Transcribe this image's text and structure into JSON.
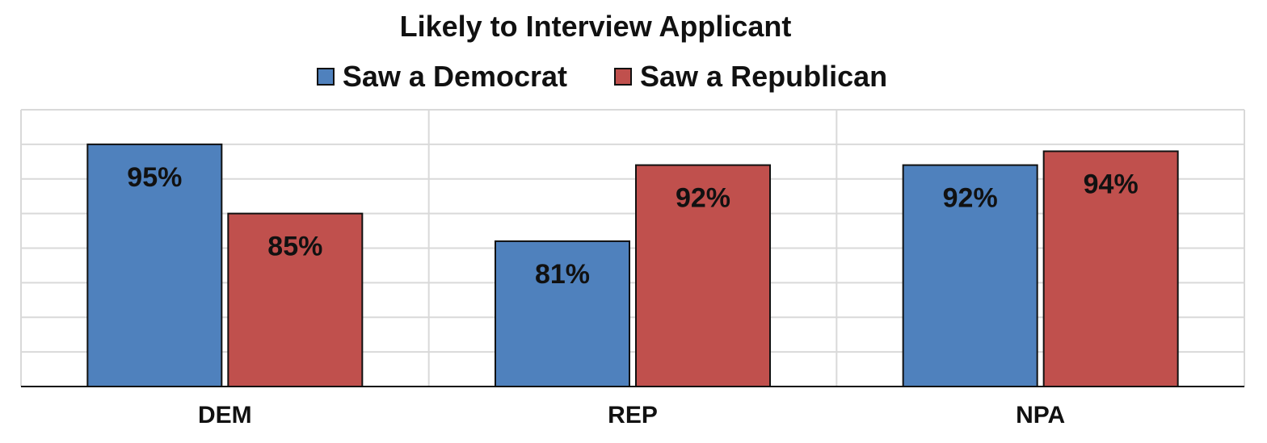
{
  "chart_data": {
    "type": "bar",
    "title": "Likely to Interview Applicant",
    "categories": [
      "DEM",
      "REP",
      "NPA"
    ],
    "series": [
      {
        "name": "Saw a Democrat",
        "values": [
          95,
          81,
          92
        ],
        "labels": [
          "95%",
          "81%",
          "92%"
        ],
        "color": "#4f81bd"
      },
      {
        "name": "Saw a Republican",
        "values": [
          85,
          92,
          94
        ],
        "labels": [
          "85%",
          "92%",
          "94%"
        ],
        "color": "#c0504d"
      }
    ],
    "ylim": [
      60,
      100
    ],
    "grid": true,
    "legend": "top-center",
    "xlabel": "",
    "ylabel": ""
  }
}
